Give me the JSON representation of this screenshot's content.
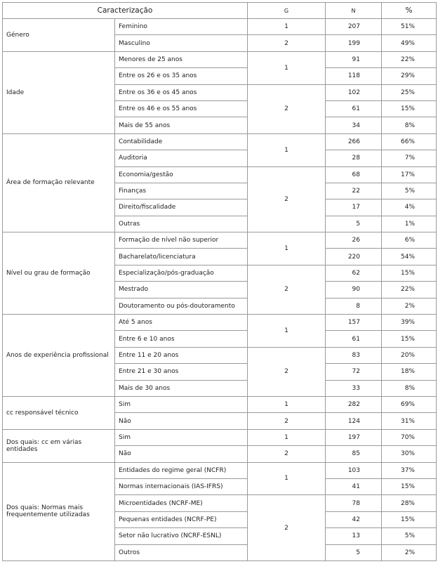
{
  "header": [
    "Caracterização",
    "G",
    "N",
    "%"
  ],
  "groups": [
    {
      "label": "Género",
      "subgroups": [
        {
          "g": 1,
          "rows": [
            {
              "label": "Feminino",
              "n": 207,
              "pct": "51%"
            }
          ]
        },
        {
          "g": 2,
          "rows": [
            {
              "label": "Masculino",
              "n": 199,
              "pct": "49%"
            }
          ]
        }
      ]
    },
    {
      "label": "Idade",
      "subgroups": [
        {
          "g": 1,
          "rows": [
            {
              "label": "Menores de 25 anos",
              "n": 91,
              "pct": "22%"
            },
            {
              "label": "Entre os 26 e os 35 anos",
              "n": 118,
              "pct": "29%"
            }
          ]
        },
        {
          "g": 2,
          "rows": [
            {
              "label": "Entre os 36 e os 45 anos",
              "n": 102,
              "pct": "25%"
            },
            {
              "label": "Entre os 46 e os 55 anos",
              "n": 61,
              "pct": "15%"
            },
            {
              "label": "Mais de 55 anos",
              "n": 34,
              "pct": "8%"
            }
          ]
        }
      ]
    },
    {
      "label": "Área de formação relevante",
      "subgroups": [
        {
          "g": 1,
          "rows": [
            {
              "label": "Contabilidade",
              "n": 266,
              "pct": "66%"
            },
            {
              "label": "Auditoria",
              "n": 28,
              "pct": "7%"
            }
          ]
        },
        {
          "g": 2,
          "rows": [
            {
              "label": "Economia/gestão",
              "n": 68,
              "pct": "17%"
            },
            {
              "label": "Finanças",
              "n": 22,
              "pct": "5%"
            },
            {
              "label": "Direito/fiscalidade",
              "n": 17,
              "pct": "4%"
            },
            {
              "label": "Outras",
              "n": 5,
              "pct": "1%"
            }
          ]
        }
      ]
    },
    {
      "label": "Nível ou grau de formação",
      "subgroups": [
        {
          "g": 1,
          "rows": [
            {
              "label": "Formação de nível não superior",
              "n": 26,
              "pct": "6%"
            },
            {
              "label": "Bacharelato/licenciatura",
              "n": 220,
              "pct": "54%"
            }
          ]
        },
        {
          "g": 2,
          "rows": [
            {
              "label": "Especialização/pós-graduação",
              "n": 62,
              "pct": "15%"
            },
            {
              "label": "Mestrado",
              "n": 90,
              "pct": "22%"
            },
            {
              "label": "Doutoramento ou pós-doutoramento",
              "n": 8,
              "pct": "2%"
            }
          ]
        }
      ]
    },
    {
      "label": "Anos de experiência profissional",
      "subgroups": [
        {
          "g": 1,
          "rows": [
            {
              "label": "Até 5 anos",
              "n": 157,
              "pct": "39%"
            },
            {
              "label": "Entre 6 e 10 anos",
              "n": 61,
              "pct": "15%"
            }
          ]
        },
        {
          "g": 2,
          "rows": [
            {
              "label": "Entre 11 e 20 anos",
              "n": 83,
              "pct": "20%"
            },
            {
              "label": "Entre 21 e 30 anos",
              "n": 72,
              "pct": "18%"
            },
            {
              "label": "Mais de 30 anos",
              "n": 33,
              "pct": "8%"
            }
          ]
        }
      ]
    },
    {
      "label": "cc responsável técnico",
      "subgroups": [
        {
          "g": 1,
          "rows": [
            {
              "label": "Sim",
              "n": 282,
              "pct": "69%"
            }
          ]
        },
        {
          "g": 2,
          "rows": [
            {
              "label": "Não",
              "n": 124,
              "pct": "31%"
            }
          ]
        }
      ]
    },
    {
      "label": "Dos quais: cc em várias entidades",
      "subgroups": [
        {
          "g": 1,
          "rows": [
            {
              "label": "Sim",
              "n": 197,
              "pct": "70%"
            }
          ]
        },
        {
          "g": 2,
          "rows": [
            {
              "label": "Não",
              "n": 85,
              "pct": "30%"
            }
          ]
        }
      ]
    },
    {
      "label": "Dos quais: Normas mais frequentemente utilizadas",
      "subgroups": [
        {
          "g": 1,
          "rows": [
            {
              "label": "Entidades do regime geral (NCFR)",
              "n": 103,
              "pct": "37%"
            },
            {
              "label": "Normas internacionais (IAS-IFRS)",
              "n": 41,
              "pct": "15%"
            }
          ]
        },
        {
          "g": 2,
          "rows": [
            {
              "label": "Microentidades (NCRF-ME)",
              "n": 78,
              "pct": "28%"
            },
            {
              "label": "Pequenas entidades (NCRF-PE)",
              "n": 42,
              "pct": "15%"
            },
            {
              "label": "Setor não lucrativo (NCRF-ESNL)",
              "n": 13,
              "pct": "5%"
            },
            {
              "label": "Outros",
              "n": 5,
              "pct": "2%"
            }
          ]
        }
      ]
    }
  ]
}
